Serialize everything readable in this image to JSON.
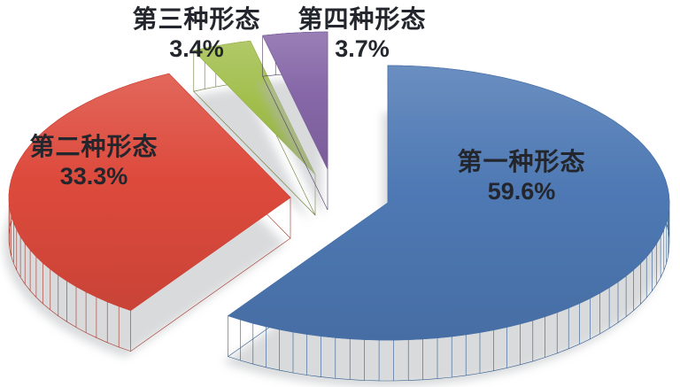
{
  "page": {
    "background_color": "#ffffff"
  },
  "chart_data": {
    "type": "pie",
    "style": "3d-exploded",
    "labels": [
      "第一种形态",
      "第二种形态",
      "第三种形态",
      "第四种形态"
    ],
    "values": [
      59.6,
      33.3,
      3.4,
      3.7
    ],
    "value_labels": [
      "59.6%",
      "33.3%",
      "3.4%",
      "3.7%"
    ],
    "colors": [
      "#4e79b4",
      "#dd4a3c",
      "#a2bf4d",
      "#8667a8"
    ],
    "side_colors": [
      "#335f90",
      "#a63527",
      "#6e7a33",
      "#4f3a63"
    ],
    "label_color": "#23262d",
    "legend_position": "none",
    "title": ""
  }
}
